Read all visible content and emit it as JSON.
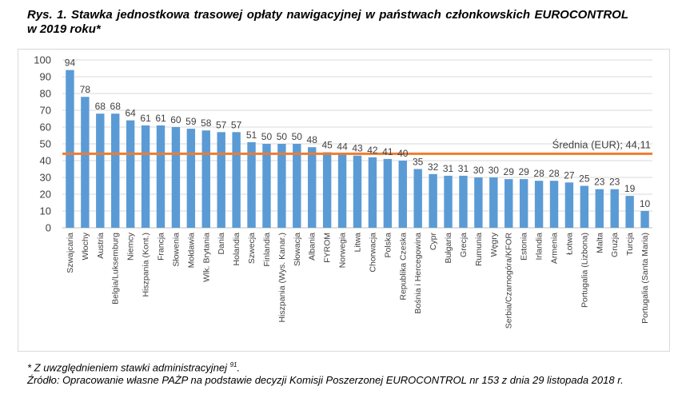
{
  "title": "Rys. 1. Stawka jednostkowa trasowej opłaty nawigacyjnej w państwach członkowskich EUROCONTROL w 2019 roku*",
  "footnote": {
    "line1": "* Z uwzględnieniem stawki administracyjnej ",
    "line1_sup": "91",
    "line1_end": ".",
    "line2": "Źródło: Opracowanie własne PAŻP na podstawie decyzji Komisji Poszerzonej EUROCONTROL nr 153 z dnia 29 listopada 2018 r."
  },
  "chart_data": {
    "type": "bar",
    "categories": [
      "Szwajcaria",
      "Włochy",
      "Austria",
      "Belgia/Luksemburg",
      "Niemcy",
      "Hiszpania (Kont.)",
      "Francja",
      "Słowenia",
      "Mołdawia",
      "Wlk. Brytania",
      "Dania",
      "Holandia",
      "Szwecja",
      "Finlandia",
      "Hiszpania (Wys. Kanar.)",
      "Słowacja",
      "Albania",
      "FYROM",
      "Norwegia",
      "Litwa",
      "Chorwacja",
      "Polska",
      "Republika Czeska",
      "Bośnia i Hercegowina",
      "Cypr",
      "Bułgaria",
      "Grecja",
      "Rumunia",
      "Węgry",
      "Serbia/Czarnogóra/KFOR",
      "Estonia",
      "Irlandia",
      "Armenia",
      "Łotwa",
      "Portugalia (Lizbona)",
      "Malta",
      "Gruzja",
      "Turcja",
      "Portugalia (Santa Maria)"
    ],
    "values": [
      94,
      78,
      68,
      68,
      64,
      61,
      61,
      60,
      59,
      58,
      57,
      57,
      51,
      50,
      50,
      50,
      48,
      45,
      44,
      43,
      42,
      41,
      40,
      35,
      32,
      31,
      31,
      30,
      30,
      29,
      29,
      28,
      28,
      27,
      25,
      23,
      23,
      19,
      10
    ],
    "value_labels": [
      "94",
      "78",
      "68",
      "68",
      "64",
      "61",
      "61",
      "60",
      "59",
      "58",
      "57",
      "57",
      "51",
      "50",
      "50",
      "50",
      "48",
      "45",
      "44",
      "43",
      "42",
      "41",
      "40",
      "35",
      "32",
      "31",
      "31",
      "30",
      "30",
      "29",
      "29",
      "28",
      "28",
      "27",
      "25",
      "23",
      "23",
      "19",
      "10"
    ],
    "ylim": [
      0,
      100
    ],
    "yticks": [
      "0",
      "10",
      "20",
      "30",
      "40",
      "50",
      "60",
      "70",
      "80",
      "90",
      "100"
    ],
    "grid": true,
    "average": {
      "label": "Średnia (EUR); 44,11",
      "value": 44.11
    },
    "colors": {
      "bar": "#5b9bd5",
      "average_line": "#ed7d31",
      "grid": "#d9d9d9",
      "text": "#404040"
    }
  }
}
